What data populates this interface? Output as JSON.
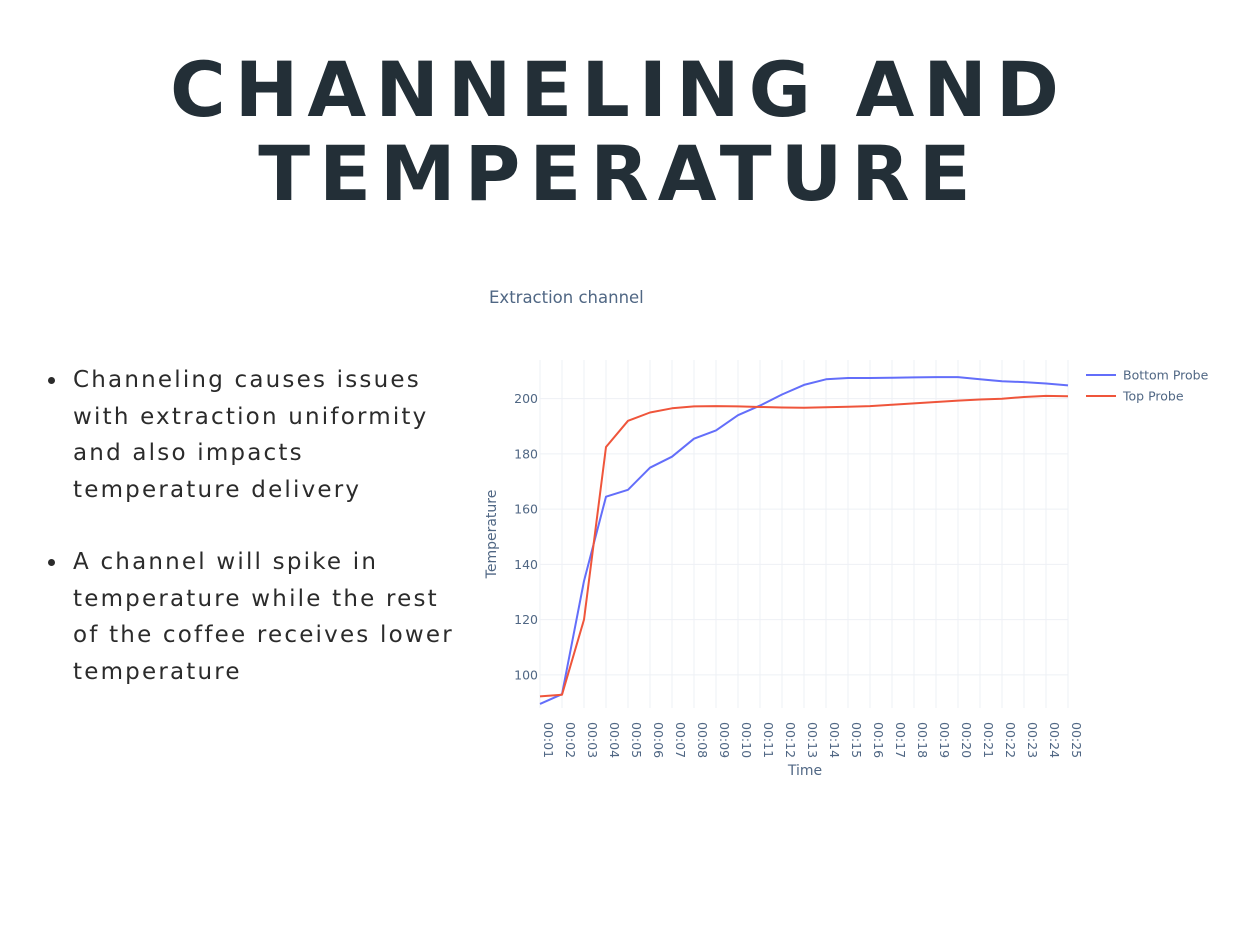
{
  "slide": {
    "title_line1": "CHANNELING AND",
    "title_line2": "TEMPERATURE",
    "bullets": [
      "Channeling causes issues with extraction uniformity and also impacts temperature delivery",
      "A channel will spike in temperature while the rest of the coffee receives lower temperature"
    ]
  },
  "chart_data": {
    "type": "line",
    "title": "Extraction channel",
    "xlabel": "Time",
    "ylabel": "Temperature",
    "categories": [
      "00:01",
      "00:02",
      "00:03",
      "00:04",
      "00:05",
      "00:06",
      "00:07",
      "00:08",
      "00:09",
      "00:10",
      "00:11",
      "00:12",
      "00:13",
      "00:14",
      "00:15",
      "00:16",
      "00:17",
      "00:18",
      "00:19",
      "00:20",
      "00:21",
      "00:22",
      "00:23",
      "00:24",
      "00:25"
    ],
    "yticks": [
      100,
      120,
      140,
      160,
      180,
      200
    ],
    "ylim": [
      88,
      214
    ],
    "grid": true,
    "legend_position": "top-right",
    "series": [
      {
        "name": "Bottom Probe",
        "color": "#636efa",
        "values": [
          89.5,
          93,
          134,
          164.5,
          167,
          175,
          179,
          185.5,
          188.5,
          194,
          197.5,
          201.5,
          205,
          207,
          207.5,
          207.5,
          207.6,
          207.7,
          207.8,
          207.8,
          207,
          206.3,
          206,
          205.5,
          204.8
        ]
      },
      {
        "name": "Top Probe",
        "color": "#ef553b",
        "values": [
          92.2,
          92.8,
          120,
          182.5,
          192,
          195,
          196.5,
          197.2,
          197.3,
          197.2,
          197,
          196.8,
          196.7,
          196.9,
          197.1,
          197.3,
          197.8,
          198.3,
          198.8,
          199.3,
          199.7,
          200,
          200.6,
          201,
          200.9
        ]
      }
    ]
  }
}
